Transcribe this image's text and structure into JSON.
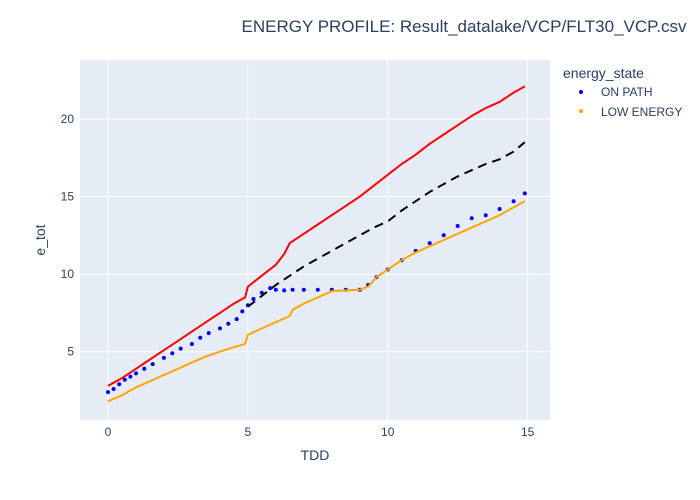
{
  "chart_data": {
    "type": "scatter",
    "title": "ENERGY PROFILE: Result_datalake/VCP/FLT30_VCP.csv",
    "xlabel": "TDD",
    "ylabel": "e_tot",
    "xlim": [
      -1,
      15.8
    ],
    "ylim": [
      0.6,
      23.8
    ],
    "x_ticks": [
      0,
      5,
      10,
      15
    ],
    "y_ticks": [
      5,
      10,
      15,
      20
    ],
    "grid": true,
    "legend": {
      "title": "energy_state",
      "position": "top-right",
      "entries": [
        {
          "name": "ON PATH",
          "color": "#0000ff"
        },
        {
          "name": "LOW ENERGY",
          "color": "#ffa500"
        }
      ]
    },
    "series": [
      {
        "name": "ON PATH",
        "mode": "markers",
        "color": "#0000ff",
        "x": [
          0.0,
          0.2,
          0.4,
          0.6,
          0.8,
          1.0,
          1.3,
          1.6,
          2.0,
          2.3,
          2.6,
          3.0,
          3.3,
          3.6,
          4.0,
          4.3,
          4.6,
          4.8,
          5.0,
          5.2,
          5.5,
          5.8,
          6.0,
          6.3,
          6.6,
          7.0,
          7.5,
          8.0,
          8.5,
          9.0,
          9.3,
          9.6,
          10.0,
          10.5,
          11.0,
          11.5,
          12.0,
          12.5,
          13.0,
          13.5,
          14.0,
          14.5,
          14.9
        ],
        "y": [
          2.4,
          2.6,
          2.9,
          3.2,
          3.4,
          3.6,
          3.9,
          4.2,
          4.6,
          4.9,
          5.2,
          5.5,
          5.9,
          6.2,
          6.5,
          6.8,
          7.1,
          7.6,
          8.0,
          8.4,
          8.8,
          9.1,
          9.0,
          8.95,
          9.0,
          9.0,
          9.0,
          9.0,
          9.0,
          9.0,
          9.3,
          9.8,
          10.3,
          10.9,
          11.5,
          12.0,
          12.5,
          13.1,
          13.6,
          13.8,
          14.2,
          14.7,
          15.2
        ]
      },
      {
        "name": "LOW ENERGY",
        "mode": "lines",
        "color": "#ffa500",
        "x": [
          0.0,
          0.5,
          1.0,
          1.5,
          2.0,
          2.5,
          3.0,
          3.5,
          4.0,
          4.5,
          4.9,
          5.0,
          5.5,
          6.0,
          6.5,
          6.6,
          7.0,
          7.5,
          8.0,
          8.5,
          9.0,
          9.3,
          9.6,
          10.0,
          10.5,
          11.0,
          11.5,
          12.0,
          12.5,
          13.0,
          13.5,
          14.0,
          14.5,
          14.9
        ],
        "y": [
          1.8,
          2.2,
          2.7,
          3.1,
          3.5,
          3.9,
          4.3,
          4.7,
          5.0,
          5.3,
          5.5,
          6.1,
          6.5,
          6.9,
          7.3,
          7.7,
          8.1,
          8.5,
          8.9,
          8.95,
          9.0,
          9.2,
          9.8,
          10.3,
          10.9,
          11.4,
          11.8,
          12.2,
          12.6,
          13.0,
          13.4,
          13.8,
          14.3,
          14.7
        ]
      },
      {
        "name": "",
        "mode": "lines",
        "color": "#ff0000",
        "x": [
          0.0,
          0.5,
          1.0,
          1.5,
          2.0,
          2.5,
          3.0,
          3.5,
          4.0,
          4.5,
          4.9,
          5.0,
          5.5,
          6.0,
          6.3,
          6.5,
          7.0,
          7.5,
          8.0,
          8.5,
          9.0,
          9.5,
          10.0,
          10.5,
          11.0,
          11.5,
          12.0,
          12.5,
          13.0,
          13.5,
          14.0,
          14.5,
          14.9
        ],
        "y": [
          2.8,
          3.3,
          3.9,
          4.5,
          5.1,
          5.7,
          6.3,
          6.9,
          7.5,
          8.1,
          8.5,
          9.2,
          9.9,
          10.6,
          11.3,
          12.0,
          12.6,
          13.2,
          13.8,
          14.4,
          15.0,
          15.7,
          16.4,
          17.1,
          17.7,
          18.4,
          19.0,
          19.6,
          20.2,
          20.7,
          21.1,
          21.7,
          22.1
        ]
      },
      {
        "name": "",
        "mode": "lines",
        "dash": "dash",
        "color": "#000000",
        "x": [
          5.0,
          5.5,
          6.0,
          6.5,
          7.0,
          7.5,
          8.0,
          8.5,
          9.0,
          9.5,
          10.0,
          10.5,
          11.0,
          11.5,
          12.0,
          12.5,
          13.0,
          13.5,
          14.0,
          14.5,
          14.9
        ],
        "y": [
          7.9,
          8.6,
          9.3,
          9.9,
          10.5,
          11.0,
          11.5,
          12.0,
          12.5,
          13.0,
          13.4,
          14.1,
          14.7,
          15.3,
          15.8,
          16.3,
          16.7,
          17.1,
          17.4,
          17.9,
          18.5
        ]
      }
    ]
  }
}
